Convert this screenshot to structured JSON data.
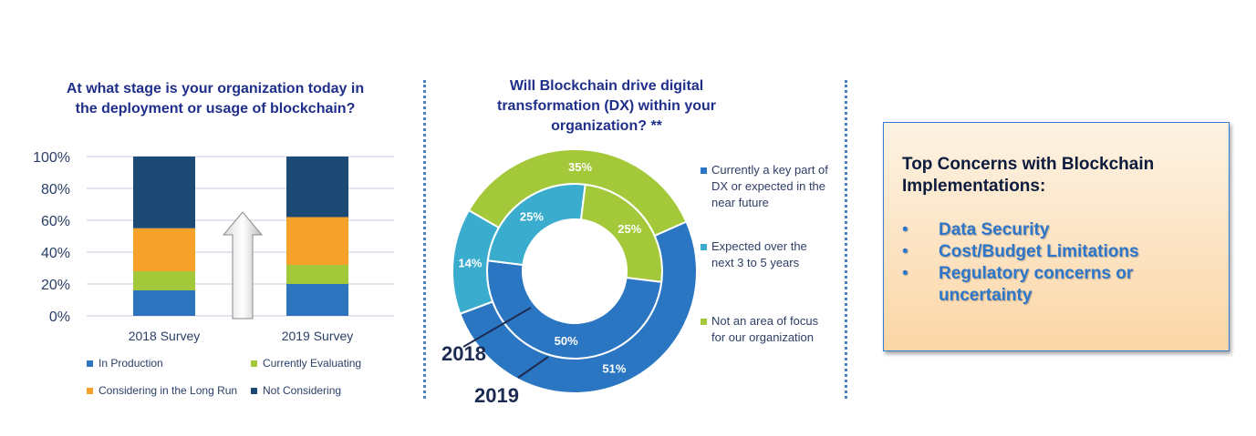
{
  "chart_data": [
    {
      "type": "bar",
      "stacked": true,
      "title": "At what stage is your organization today in the deployment or usage of blockchain?",
      "categories": [
        "2018 Survey",
        "2019 Survey"
      ],
      "series": [
        {
          "name": "In Production",
          "values": [
            16,
            20
          ],
          "color": "#2e75c0"
        },
        {
          "name": "Currently Evaluating",
          "values": [
            12,
            12
          ],
          "color": "#a3c93a"
        },
        {
          "name": "Considering in the Long Run",
          "values": [
            27,
            30
          ],
          "color": "#f5a12a"
        },
        {
          "name": "Not Considering",
          "values": [
            45,
            38
          ],
          "color": "#1d4a74"
        }
      ],
      "ylim": [
        0,
        100
      ],
      "yticks": [
        "0%",
        "20%",
        "40%",
        "60%",
        "80%",
        "100%"
      ],
      "grid": true,
      "legend_position": "bottom"
    },
    {
      "type": "pie",
      "donut": true,
      "title": "Will Blockchain drive digital transformation (DX) within your organization? **",
      "rings": [
        {
          "name": "2018",
          "values": [
            50,
            25,
            25
          ]
        },
        {
          "name": "2019",
          "values": [
            51,
            14,
            35
          ]
        }
      ],
      "slices": [
        {
          "name": "Currently a key part of DX or expected in the near future",
          "color": "#2a76c2"
        },
        {
          "name": "Expected over the next 3 to 5 years",
          "color": "#3aaccd"
        },
        {
          "name": "Not an area of focus for our organization",
          "color": "#a3c93a"
        }
      ],
      "labels": {
        "2018": [
          "50%",
          "25%",
          "25%"
        ],
        "2019": [
          "51%",
          "14%",
          "35%"
        ]
      },
      "legend_position": "right"
    }
  ],
  "donut_legend": [
    "Currently a key part of DX or expected in the near future",
    "Expected over the next 3 to 5 years",
    "Not an area of focus for our organization"
  ],
  "year_labels": {
    "y2018": "2018",
    "y2019": "2019"
  },
  "concerns": {
    "title": "Top Concerns with Blockchain Implementations:",
    "bullet": "•",
    "items": [
      "Data Security",
      "Cost/Budget Limitations",
      "Regulatory concerns or uncertainty"
    ]
  }
}
